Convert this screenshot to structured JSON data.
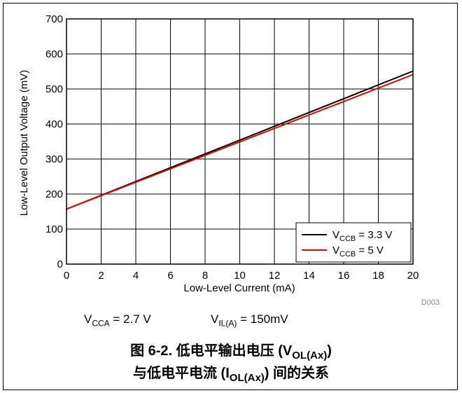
{
  "chart_data": {
    "type": "line",
    "xlabel": "Low-Level Current (mA)",
    "ylabel": "Low-Level Output Voltage (mV)",
    "xlim": [
      0,
      20
    ],
    "ylim": [
      0,
      700
    ],
    "xticks": [
      0,
      2,
      4,
      6,
      8,
      10,
      12,
      14,
      16,
      18,
      20
    ],
    "yticks": [
      0,
      100,
      200,
      300,
      400,
      500,
      600,
      700
    ],
    "grid": true,
    "legend_position": "bottom-right",
    "series": [
      {
        "name": "V_CCB = 3.3 V",
        "label_main": "V",
        "label_sub": "CCB",
        "label_rest": " = 3.3 V",
        "color": "#000000",
        "x": [
          0,
          20
        ],
        "y": [
          157,
          551
        ]
      },
      {
        "name": "V_CCB = 5 V",
        "label_main": "V",
        "label_sub": "CCB",
        "label_rest": " = 5 V",
        "color": "#e00000",
        "x": [
          0,
          20
        ],
        "y": [
          157,
          541
        ]
      }
    ],
    "figure_id": "D003"
  },
  "conditions": {
    "vcca_main": "V",
    "vcca_sub": "CCA",
    "vcca_rest": " = 2.7 V",
    "vil_main": "V",
    "vil_sub": "IL(A)",
    "vil_rest": " = 150mV"
  },
  "caption": {
    "line1_prefix": "图 6-2. 低电平输出电压 (V",
    "line1_sub": "OL(Ax)",
    "line1_suffix": ")",
    "line2_prefix": "与低电平电流 (I",
    "line2_sub": "OL(Ax)",
    "line2_suffix": ") 间的关系"
  }
}
